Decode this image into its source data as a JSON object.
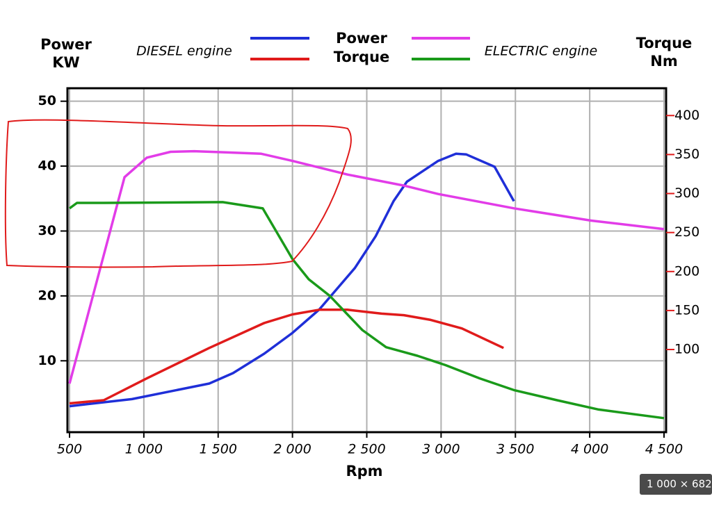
{
  "chart_data": {
    "type": "line",
    "x_label": "Rpm",
    "y_label": [
      "Power",
      "KW"
    ],
    "y2_label": [
      "Torque",
      "Nm"
    ],
    "legend": {
      "groups": [
        "DIESEL engine",
        "ELECTRIC engine"
      ],
      "rows": [
        "Power",
        "Torque"
      ]
    },
    "xlim": [
      486,
      4514
    ],
    "xticks": [
      500,
      {
        "value": 1000,
        "label": "1 000"
      },
      {
        "value": 1500,
        "label": "1 500"
      },
      {
        "value": 2000,
        "label": "2 000"
      },
      {
        "value": 2500,
        "label": "2 500"
      },
      {
        "value": 3000,
        "label": "3 000"
      },
      {
        "value": 3500,
        "label": "3 500"
      },
      {
        "value": 4000,
        "label": "4 000"
      },
      {
        "value": 4500,
        "label": "4 500"
      }
    ],
    "ylim": [
      -1,
      52
    ],
    "yticks": [
      10,
      20,
      30,
      40,
      50
    ],
    "y2lim": [
      -6,
      435
    ],
    "y2ticks": [
      100,
      150,
      200,
      250,
      300,
      350,
      400
    ],
    "grid": true,
    "series": [
      {
        "color": "#1f2fd8",
        "axis": "y",
        "x": [
          500,
          920,
          1440,
          1600,
          1810,
          2000,
          2180,
          2420,
          2560,
          2680,
          2770,
          2980,
          3100,
          3170,
          3360,
          3490
        ],
        "values": [
          3,
          4.1,
          6.5,
          8.1,
          11.1,
          14.3,
          17.9,
          24.3,
          29.2,
          34.6,
          37.6,
          40.8,
          41.9,
          41.8,
          39.9,
          34.6
        ]
      },
      {
        "color": "#e01b1b",
        "axis": "y2",
        "x": [
          500,
          730,
          1020,
          1440,
          1810,
          2000,
          2180,
          2370,
          2600,
          2750,
          2930,
          3140,
          3420
        ],
        "values": [
          31,
          35,
          63,
          102,
          134,
          145,
          151,
          151,
          146,
          144,
          138,
          127,
          102
        ]
      },
      {
        "color": "#e23ce8",
        "axis": "y",
        "x": [
          500,
          870,
          1020,
          1180,
          1340,
          1580,
          1790,
          2000,
          2370,
          2750,
          2980,
          3490,
          4010,
          4500
        ],
        "values": [
          6.5,
          38.3,
          41.3,
          42.2,
          42.3,
          42.1,
          41.9,
          40.8,
          38.7,
          37,
          35.7,
          33.5,
          31.6,
          30.3
        ]
      },
      {
        "color": "#1a9a1a",
        "axis": "y2",
        "x": [
          500,
          550,
          730,
          1530,
          1800,
          2000,
          2110,
          2250,
          2470,
          2630,
          2840,
          3030,
          3260,
          3490,
          3780,
          4060,
          4500
        ],
        "values": [
          281,
          288,
          288,
          289,
          281,
          216,
          190,
          169,
          125,
          103,
          92,
          80,
          63,
          48,
          35,
          23,
          12
        ]
      }
    ],
    "badge": "1 000 × 682"
  }
}
